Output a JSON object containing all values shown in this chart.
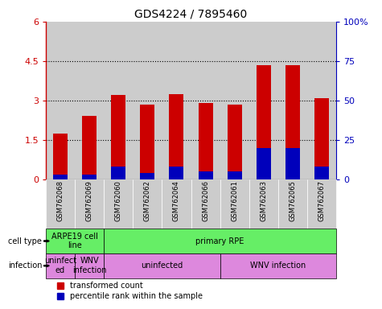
{
  "title": "GDS4224 / 7895460",
  "samples": [
    "GSM762068",
    "GSM762069",
    "GSM762060",
    "GSM762062",
    "GSM762064",
    "GSM762066",
    "GSM762061",
    "GSM762063",
    "GSM762065",
    "GSM762067"
  ],
  "transformed_count": [
    1.75,
    2.4,
    3.2,
    2.85,
    3.25,
    2.9,
    2.85,
    4.35,
    4.35,
    3.1
  ],
  "percentile_rank_pct": [
    3,
    3,
    8,
    4,
    8,
    5,
    5,
    20,
    20,
    8
  ],
  "ylim_left": [
    0,
    6
  ],
  "ylim_right": [
    0,
    100
  ],
  "yticks_left": [
    0,
    1.5,
    3.0,
    4.5,
    6.0
  ],
  "ytick_labels_left": [
    "0",
    "1.5",
    "3",
    "4.5",
    "6"
  ],
  "yticks_right": [
    0,
    25,
    50,
    75,
    100
  ],
  "ytick_labels_right": [
    "0",
    "25",
    "50",
    "75",
    "100%"
  ],
  "red_color": "#cc0000",
  "blue_color": "#0000bb",
  "bar_width": 0.5,
  "cell_type_row": [
    {
      "label": "ARPE19 cell\nline",
      "start": 0,
      "end": 2,
      "color": "#66ee66"
    },
    {
      "label": "primary RPE",
      "start": 2,
      "end": 10,
      "color": "#66ee66"
    }
  ],
  "infection_row": [
    {
      "label": "uninfect\ned",
      "start": 0,
      "end": 1,
      "color": "#dd88dd"
    },
    {
      "label": "WNV\ninfection",
      "start": 1,
      "end": 2,
      "color": "#dd88dd"
    },
    {
      "label": "uninfected",
      "start": 2,
      "end": 6,
      "color": "#dd88dd"
    },
    {
      "label": "WNV infection",
      "start": 6,
      "end": 10,
      "color": "#dd88dd"
    }
  ],
  "bg_color": "#ffffff",
  "tick_bg_color": "#cccccc",
  "legend_labels": [
    "transformed count",
    "percentile rank within the sample"
  ]
}
